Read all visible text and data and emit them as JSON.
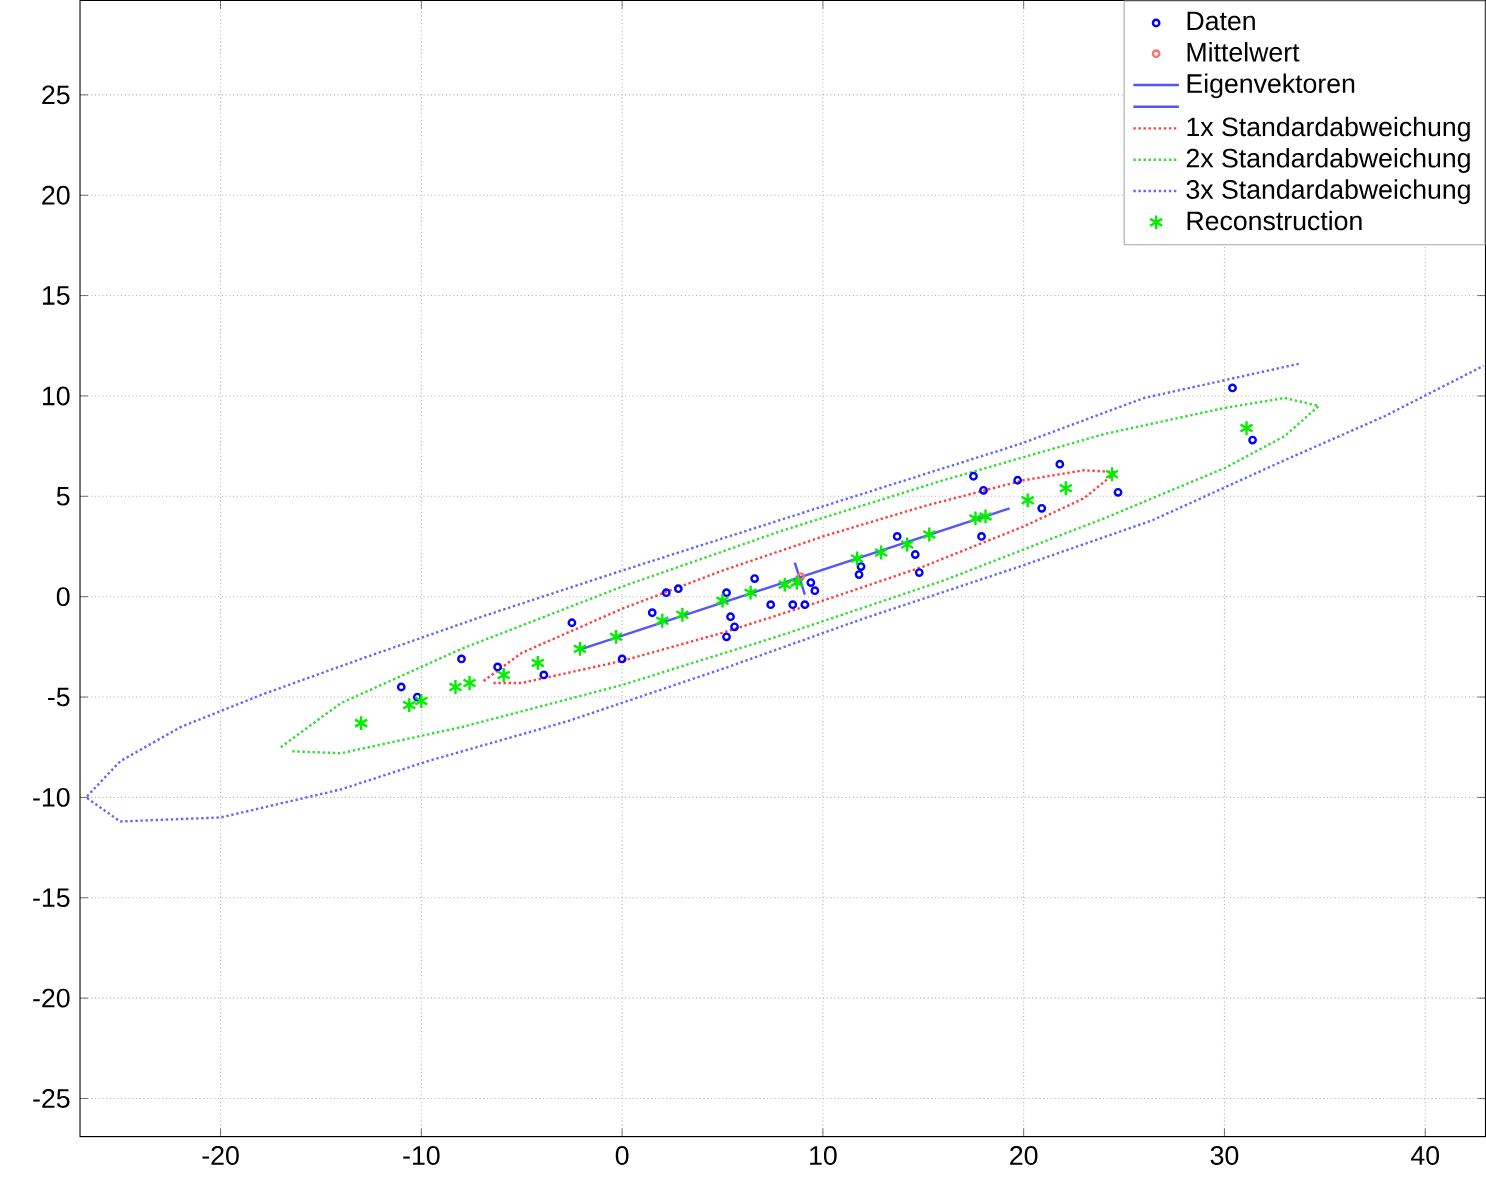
{
  "chart_data": {
    "type": "scatter",
    "xlim": [
      -27,
      43
    ],
    "ylim": [
      -26.9,
      29.7
    ],
    "xticks": [
      -20,
      -10,
      0,
      10,
      20,
      30,
      40
    ],
    "yticks": [
      -25,
      -20,
      -15,
      -10,
      -5,
      0,
      5,
      10,
      15,
      20,
      25
    ],
    "grid": true,
    "legend": "top right",
    "series": [
      {
        "name": "Daten",
        "marker": "circle",
        "color": "#0000ff",
        "x": [
          -11.0,
          -10.2,
          -8.0,
          -6.2,
          -3.9,
          -2.5,
          0,
          1.5,
          2.2,
          2.8,
          5.2,
          5.4,
          5.6,
          5.2,
          6.6,
          7.4,
          8.5,
          9.1,
          9.6,
          9.4,
          11.9,
          11.8,
          13.7,
          14.6,
          14.8,
          17.5,
          18.0,
          17.9,
          19.7,
          21.8,
          20.9,
          24.7,
          30.4,
          31.4
        ],
        "values": [
          -4.5,
          -5.0,
          -3.1,
          -3.5,
          -3.9,
          -1.3,
          -3.1,
          -0.8,
          0.2,
          0.4,
          0.2,
          -1.0,
          -1.5,
          -2.0,
          0.9,
          -0.4,
          -0.4,
          -0.4,
          0.3,
          0.7,
          1.5,
          1.1,
          3.0,
          2.1,
          1.2,
          6.0,
          5.3,
          3.0,
          5.8,
          6.6,
          4.4,
          5.2,
          10.4,
          7.8
        ]
      },
      {
        "name": "Mittelwert",
        "marker": "circle",
        "color": "#ff7070",
        "x": [
          8.9
        ],
        "values": [
          1.0
        ]
      },
      {
        "name": "Eigenvektoren",
        "type": "line",
        "line_style": "solid",
        "color": "#5555ff",
        "x": [
          -2.0,
          19.3
        ],
        "values": [
          -2.6,
          4.4
        ]
      },
      {
        "type": "line",
        "line_style": "solid",
        "color": "#5555ff",
        "x": [
          8.6,
          9.1
        ],
        "values": [
          1.7,
          0.1
        ]
      },
      {
        "name": "1x Standardabweichung",
        "type": "line",
        "line_style": "dotted",
        "color": "#ff4040",
        "x": [
          -6.9,
          -5,
          0,
          5,
          10,
          15,
          20,
          23,
          24.6,
          23,
          20,
          15,
          10,
          5,
          0,
          -5,
          -6.5
        ],
        "values": [
          -4.2,
          -2.8,
          -0.6,
          1.3,
          3.0,
          4.5,
          5.8,
          6.3,
          6.2,
          4.9,
          3.5,
          1.5,
          -0.2,
          -1.8,
          -3.2,
          -4.3,
          -4.3
        ]
      },
      {
        "name": "2x Standardabweichung",
        "type": "line",
        "line_style": "dotted",
        "color": "#33dd33",
        "x": [
          -17,
          -14,
          -8,
          0,
          8,
          16,
          24,
          30,
          33,
          34.7,
          33,
          30,
          24,
          16,
          8,
          0,
          -8,
          -14,
          -16.5
        ],
        "values": [
          -7.5,
          -5.3,
          -2.6,
          0.5,
          3.3,
          5.8,
          8.1,
          9.4,
          9.9,
          9.5,
          8.0,
          6.4,
          3.9,
          0.8,
          -1.9,
          -4.4,
          -6.5,
          -7.8,
          -7.7
        ]
      },
      {
        "name": "3x Standardabweichung",
        "type": "line",
        "line_style": "dotted",
        "color": "#6666ff",
        "x": [
          33.7,
          26,
          19.8,
          10,
          0,
          -7,
          -13,
          -18,
          -22,
          -25,
          -26.7,
          -25,
          -20,
          -14,
          -9.7,
          -2.7,
          5,
          12,
          16.8,
          19.8,
          26.4,
          33,
          38,
          42.9
        ],
        "values": [
          11.6,
          9.9,
          7.6,
          4.5,
          1.3,
          -1.0,
          -3.1,
          -4.9,
          -6.5,
          -8.2,
          -10.0,
          -11.2,
          -11.0,
          -9.6,
          -8.2,
          -6.2,
          -3.6,
          -1.1,
          0.5,
          1.5,
          3.8,
          6.8,
          9.0,
          11.5
        ]
      },
      {
        "name": "Reconstruction",
        "marker": "cross",
        "color": "#00ee00",
        "x": [
          -13.0,
          -10.6,
          -10.0,
          -8.3,
          -7.6,
          -5.9,
          -4.2,
          -2.1,
          -0.3,
          2.0,
          3.0,
          5.0,
          6.4,
          8.1,
          8.7,
          11.7,
          12.9,
          14.2,
          15.3,
          17.6,
          18.1,
          20.2,
          22.1,
          24.4,
          31.1
        ],
        "values": [
          -6.3,
          -5.4,
          -5.2,
          -4.5,
          -4.3,
          -3.9,
          -3.3,
          -2.6,
          -2.0,
          -1.2,
          -0.9,
          -0.2,
          0.2,
          0.6,
          0.7,
          1.9,
          2.2,
          2.6,
          3.1,
          3.9,
          4.0,
          4.8,
          5.4,
          6.1,
          8.4
        ]
      }
    ]
  }
}
